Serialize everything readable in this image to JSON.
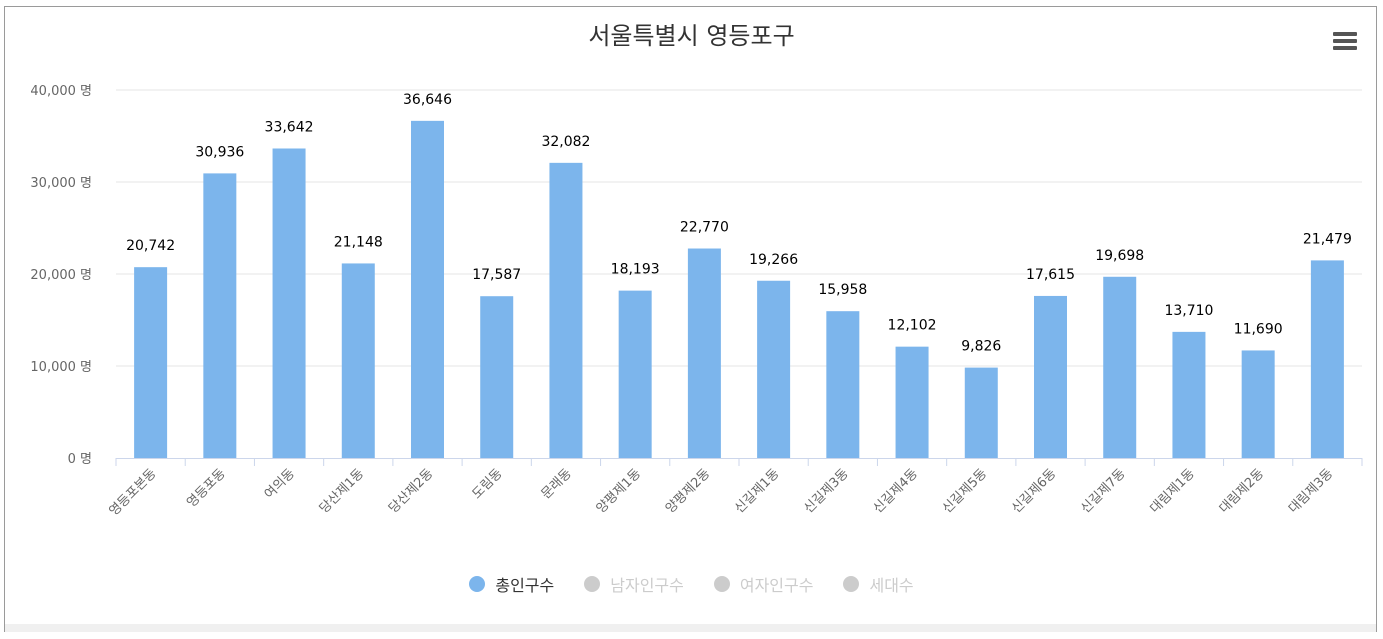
{
  "chart_data": {
    "type": "bar",
    "title": "서울특별시 영등포구",
    "categories": [
      "영등포본동",
      "영등포동",
      "여의동",
      "당산제1동",
      "당산제2동",
      "도림동",
      "문래동",
      "양평제1동",
      "양평제2동",
      "신길제1동",
      "신길제3동",
      "신길제4동",
      "신길제5동",
      "신길제6동",
      "신길제7동",
      "대림제1동",
      "대림제2동",
      "대림제3동"
    ],
    "series": [
      {
        "name": "총인구수",
        "values": [
          20742,
          30936,
          33642,
          21148,
          36646,
          17587,
          32082,
          18193,
          22770,
          19266,
          15958,
          12102,
          9826,
          17615,
          19698,
          13710,
          11690,
          21479
        ],
        "visible": true
      }
    ],
    "value_labels": [
      "20,742",
      "30,936",
      "33,642",
      "21,148",
      "36,646",
      "17,587",
      "32,082",
      "18,193",
      "22,770",
      "19,266",
      "15,958",
      "12,102",
      "9,826",
      "17,615",
      "19,698",
      "13,710",
      "11,690",
      "21,479"
    ],
    "ylim": [
      0,
      40000
    ],
    "yticks": [
      0,
      10000,
      20000,
      30000,
      40000
    ],
    "ytick_labels": [
      "0 명",
      "10,000 명",
      "20,000 명",
      "30,000 명",
      "40,000 명"
    ],
    "grid": true,
    "legend_position": "bottom-center",
    "legend": [
      {
        "label": "총인구수",
        "active": true
      },
      {
        "label": "남자인구수",
        "active": false
      },
      {
        "label": "여자인구수",
        "active": false
      },
      {
        "label": "세대수",
        "active": false
      }
    ],
    "colors": {
      "bar": "#7cb5ec",
      "inactive": "#cccccc",
      "grid": "#e6e6e6",
      "axis": "#ccd6eb",
      "text": "#666666",
      "label": "#000000",
      "title": "#333333"
    }
  },
  "menu": {
    "icon": "hamburger-menu-icon"
  }
}
